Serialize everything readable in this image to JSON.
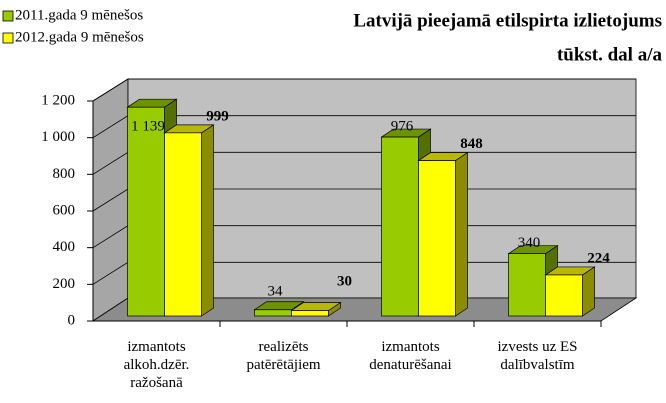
{
  "chart_data": {
    "type": "bar3d",
    "title": "Latvijā pieejamā etilspirta izlietojums",
    "subtitle": "tūkst. dal a/a",
    "categories": [
      "izmantots\nalkoh.dzēr.\nražošanā",
      "realizēts\npatērētājiem",
      "izmantots\ndenaturēšanai",
      "izvests uz ES\ndalībvalstīm"
    ],
    "series": [
      {
        "name": "2011.gada 9 mēnešos",
        "color": "#99cc00",
        "values": [
          1139,
          34,
          976,
          340
        ],
        "value_labels": [
          "1 139",
          "34",
          "976",
          "340"
        ]
      },
      {
        "name": "2012.gada 9 mēnešos",
        "color": "#ffff00",
        "values": [
          999,
          30,
          848,
          224
        ],
        "value_labels": [
          "999",
          "30",
          "848",
          "224"
        ]
      }
    ],
    "ylim": [
      0,
      1200
    ],
    "yticks": [
      0,
      200,
      400,
      600,
      800,
      {
        "value": 1000,
        "label": "1 000"
      },
      {
        "value": 1200,
        "label": "1 200"
      }
    ],
    "grid": true,
    "legend": "top-left"
  }
}
